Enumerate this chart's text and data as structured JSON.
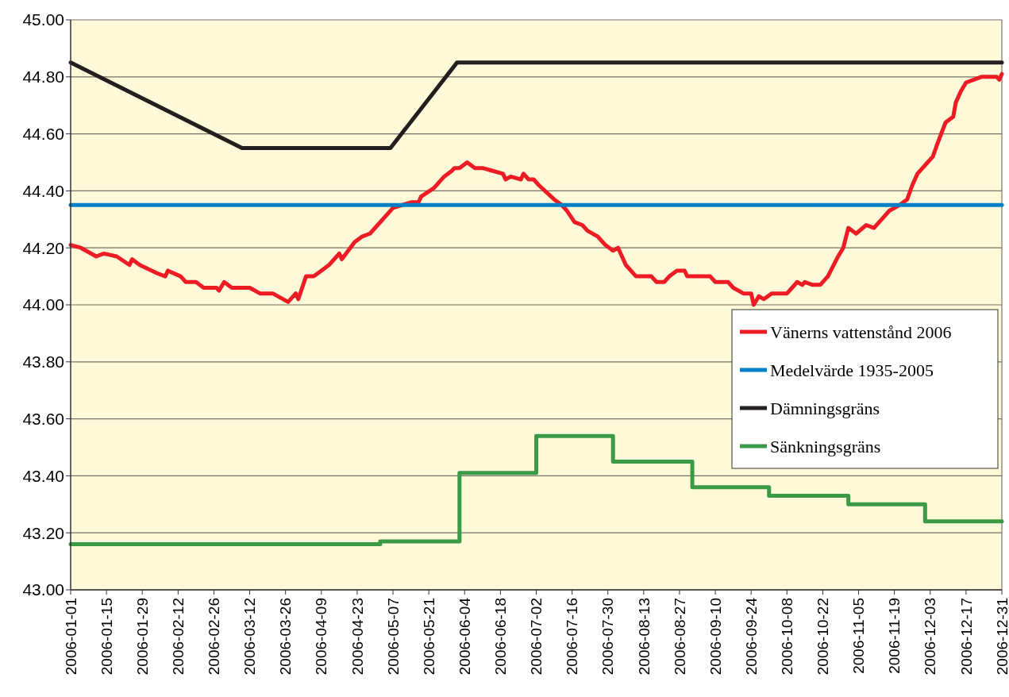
{
  "chart_data": {
    "type": "line",
    "xlim": [
      "2006-01-01",
      "2006-12-31"
    ],
    "xticks": [
      "2006-01-01",
      "2006-01-15",
      "2006-01-29",
      "2006-02-12",
      "2006-02-26",
      "2006-03-12",
      "2006-03-26",
      "2006-04-09",
      "2006-04-23",
      "2006-05-07",
      "2006-05-21",
      "2006-06-04",
      "2006-06-18",
      "2006-07-02",
      "2006-07-16",
      "2006-07-30",
      "2006-08-13",
      "2006-08-27",
      "2006-09-10",
      "2006-09-24",
      "2006-10-08",
      "2006-10-22",
      "2006-11-05",
      "2006-11-19",
      "2006-12-03",
      "2006-12-17",
      "2006-12-31"
    ],
    "ylim": [
      43,
      45
    ],
    "yticks": [
      {
        "value": 43,
        "label": "43.00"
      },
      {
        "value": 43.2,
        "label": "43.20"
      },
      {
        "value": 43.4,
        "label": "43.40"
      },
      {
        "value": 43.6,
        "label": "43.60"
      },
      {
        "value": 43.8,
        "label": "43.80"
      },
      {
        "value": 44,
        "label": "44.00"
      },
      {
        "value": 44.2,
        "label": "44.20"
      },
      {
        "value": 44.4,
        "label": "44.40"
      },
      {
        "value": 44.6,
        "label": "44.60"
      },
      {
        "value": 44.8,
        "label": "44.80"
      },
      {
        "value": 45,
        "label": "45.00"
      }
    ],
    "grid": "y",
    "legend": "right",
    "marker": "none",
    "line_style": "solid",
    "series": [
      {
        "name": "Vänerns vattenstånd 2006",
        "color": "#ed1c24",
        "x": [
          "2006-01-01",
          "2006-01-05",
          "2006-01-11",
          "2006-01-14",
          "2006-01-19",
          "2006-01-24",
          "2006-01-25",
          "2006-01-28",
          "2006-02-04",
          "2006-02-07",
          "2006-02-08",
          "2006-02-13",
          "2006-02-15",
          "2006-02-19",
          "2006-02-22",
          "2006-02-27",
          "2006-02-28",
          "2006-03-02",
          "2006-03-05",
          "2006-03-12",
          "2006-03-16",
          "2006-03-21",
          "2006-03-27",
          "2006-03-30",
          "2006-03-31",
          "2006-04-03",
          "2006-04-06",
          "2006-04-09",
          "2006-04-12",
          "2006-04-16",
          "2006-04-17",
          "2006-04-22",
          "2006-04-25",
          "2006-04-28",
          "2006-05-01",
          "2006-05-07",
          "2006-05-14",
          "2006-05-17",
          "2006-05-18",
          "2006-05-23",
          "2006-05-27",
          "2006-05-30",
          "2006-05-31",
          "2006-06-02",
          "2006-06-05",
          "2006-06-08",
          "2006-06-11",
          "2006-06-15",
          "2006-06-19",
          "2006-06-20",
          "2006-06-22",
          "2006-06-26",
          "2006-06-27",
          "2006-06-29",
          "2006-07-01",
          "2006-07-03",
          "2006-07-09",
          "2006-07-12",
          "2006-07-14",
          "2006-07-17",
          "2006-07-20",
          "2006-07-22",
          "2006-07-26",
          "2006-07-29",
          "2006-08-01",
          "2006-08-03",
          "2006-08-06",
          "2006-08-10",
          "2006-08-16",
          "2006-08-18",
          "2006-08-21",
          "2006-08-23",
          "2006-08-26",
          "2006-08-29",
          "2006-08-30",
          "2006-09-08",
          "2006-09-10",
          "2006-09-15",
          "2006-09-17",
          "2006-09-21",
          "2006-09-24",
          "2006-09-25",
          "2006-09-27",
          "2006-09-29",
          "2006-10-02",
          "2006-10-08",
          "2006-10-10",
          "2006-10-12",
          "2006-10-14",
          "2006-10-15",
          "2006-10-18",
          "2006-10-21",
          "2006-10-24",
          "2006-10-28",
          "2006-10-30",
          "2006-11-01",
          "2006-11-04",
          "2006-11-08",
          "2006-11-11",
          "2006-11-14",
          "2006-11-17",
          "2006-11-21",
          "2006-11-24",
          "2006-11-26",
          "2006-11-28",
          "2006-12-02",
          "2006-12-04",
          "2006-12-06",
          "2006-12-09",
          "2006-12-12",
          "2006-12-13",
          "2006-12-15",
          "2006-12-17",
          "2006-12-20",
          "2006-12-23",
          "2006-12-29",
          "2006-12-30",
          "2006-12-31"
        ],
        "values": [
          44.21,
          44.2,
          44.17,
          44.18,
          44.17,
          44.14,
          44.16,
          44.14,
          44.11,
          44.1,
          44.12,
          44.1,
          44.08,
          44.08,
          44.06,
          44.06,
          44.05,
          44.08,
          44.06,
          44.06,
          44.04,
          44.04,
          44.01,
          44.04,
          44.02,
          44.1,
          44.1,
          44.12,
          44.14,
          44.18,
          44.16,
          44.22,
          44.24,
          44.25,
          44.28,
          44.34,
          44.36,
          44.36,
          44.38,
          44.41,
          44.45,
          44.47,
          44.48,
          44.48,
          44.5,
          44.48,
          44.48,
          44.47,
          44.46,
          44.44,
          44.45,
          44.44,
          44.46,
          44.44,
          44.44,
          44.42,
          44.37,
          44.35,
          44.33,
          44.29,
          44.28,
          44.26,
          44.24,
          44.21,
          44.19,
          44.2,
          44.14,
          44.1,
          44.1,
          44.08,
          44.08,
          44.1,
          44.12,
          44.12,
          44.1,
          44.1,
          44.08,
          44.08,
          44.06,
          44.04,
          44.04,
          44.0,
          44.03,
          44.02,
          44.04,
          44.04,
          44.06,
          44.08,
          44.07,
          44.08,
          44.07,
          44.07,
          44.1,
          44.17,
          44.2,
          44.27,
          44.25,
          44.28,
          44.27,
          44.3,
          44.33,
          44.35,
          44.37,
          44.42,
          44.46,
          44.5,
          44.52,
          44.57,
          44.64,
          44.66,
          44.71,
          44.75,
          44.78,
          44.79,
          44.8,
          44.8,
          44.79,
          44.81
        ]
      },
      {
        "name": "Medelvärde 1935-2005",
        "color": "#0080c6",
        "x": [
          "2006-01-01",
          "2006-12-31"
        ],
        "values": [
          44.35,
          44.35
        ]
      },
      {
        "name": "Dämningsgräns",
        "color": "#231f20",
        "x": [
          "2006-01-01",
          "2006-03-09",
          "2006-05-06",
          "2006-06-01",
          "2006-12-31"
        ],
        "values": [
          44.85,
          44.55,
          44.55,
          44.85,
          44.85
        ]
      },
      {
        "name": "Sänkningsgräns",
        "type": "step",
        "color": "#3a9a45",
        "x": [
          "2006-01-01",
          "2006-05-02",
          "2006-06-02",
          "2006-07-02",
          "2006-08-01",
          "2006-09-01",
          "2006-10-01",
          "2006-11-01",
          "2006-12-01",
          "2006-12-31"
        ],
        "values": [
          43.16,
          43.17,
          43.41,
          43.54,
          43.45,
          43.36,
          43.33,
          43.3,
          43.24,
          43.24
        ]
      }
    ]
  }
}
